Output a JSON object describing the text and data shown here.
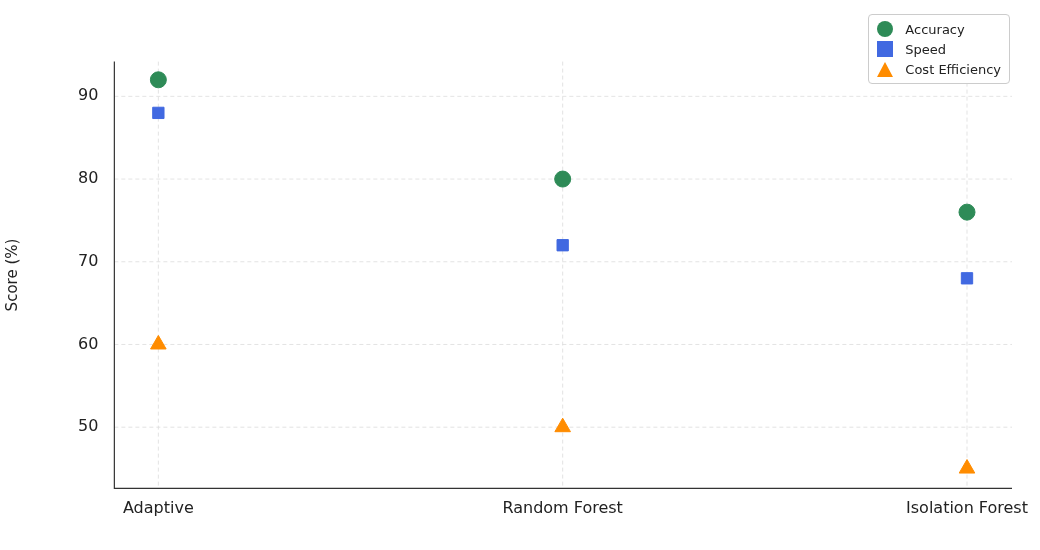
{
  "chart_data": {
    "type": "scatter",
    "ylabel": "Score (%)",
    "categories": [
      "Adaptive",
      "Random Forest",
      "Isolation Forest"
    ],
    "series": [
      {
        "name": "Accuracy",
        "color": "#2e8b57",
        "marker": "circle",
        "values": [
          92,
          80,
          76
        ]
      },
      {
        "name": "Speed",
        "color": "#4169e1",
        "marker": "square",
        "values": [
          88,
          72,
          68
        ]
      },
      {
        "name": "Cost Efficiency",
        "color": "#ff8c00",
        "marker": "triangle",
        "values": [
          60,
          50,
          45
        ]
      }
    ],
    "ylim": [
      42.6,
      94.2
    ],
    "yticks": [
      50,
      60,
      70,
      80,
      90
    ],
    "grid": true,
    "legend": "top right"
  }
}
